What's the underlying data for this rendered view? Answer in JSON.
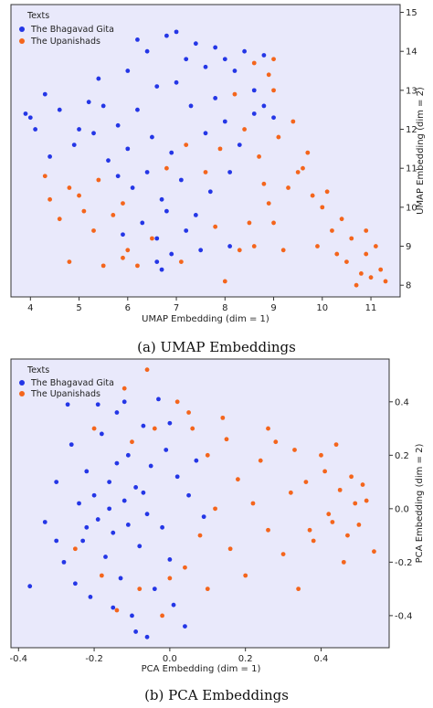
{
  "colors": {
    "series_a": "#2436e6",
    "series_b": "#f4651c",
    "plot_bg": "#e9e9fb"
  },
  "captions": {
    "a": "(a) UMAP Embeddings",
    "b": "(b) PCA Embeddings"
  },
  "chart_data": [
    {
      "type": "scatter",
      "xlabel": "UMAP Embedding (dim = 1)",
      "ylabel": "UMAP Embedding (dim = 2)",
      "xlim": [
        3.6,
        11.6
      ],
      "ylim": [
        7.7,
        15.2
      ],
      "x_ticks": [
        4,
        5,
        6,
        7,
        8,
        9,
        10,
        11
      ],
      "y_ticks": [
        8,
        9,
        10,
        11,
        12,
        13,
        14,
        15
      ],
      "y_axis_side": "right",
      "grid": false,
      "legend": {
        "title": "Texts",
        "position": "top-left"
      },
      "series": [
        {
          "name": "The Bhagavad Gita",
          "points": [
            [
              3.9,
              12.4
            ],
            [
              4.0,
              12.3
            ],
            [
              4.1,
              12.0
            ],
            [
              4.3,
              12.9
            ],
            [
              4.6,
              12.5
            ],
            [
              5.0,
              12.0
            ],
            [
              5.2,
              12.7
            ],
            [
              5.4,
              13.3
            ],
            [
              5.8,
              12.1
            ],
            [
              6.0,
              13.5
            ],
            [
              6.2,
              14.3
            ],
            [
              6.4,
              14.0
            ],
            [
              6.6,
              13.1
            ],
            [
              6.8,
              14.4
            ],
            [
              7.0,
              14.5
            ],
            [
              7.2,
              13.8
            ],
            [
              7.4,
              14.2
            ],
            [
              7.6,
              13.6
            ],
            [
              7.8,
              14.1
            ],
            [
              8.0,
              13.8
            ],
            [
              8.2,
              13.5
            ],
            [
              8.4,
              14.0
            ],
            [
              8.6,
              13.0
            ],
            [
              8.8,
              13.9
            ],
            [
              6.2,
              12.5
            ],
            [
              6.5,
              11.8
            ],
            [
              6.9,
              11.4
            ],
            [
              7.3,
              12.6
            ],
            [
              7.6,
              11.9
            ],
            [
              8.0,
              12.2
            ],
            [
              8.3,
              11.6
            ],
            [
              8.6,
              12.4
            ],
            [
              5.6,
              11.2
            ],
            [
              5.8,
              10.8
            ],
            [
              6.1,
              10.5
            ],
            [
              6.4,
              10.9
            ],
            [
              6.7,
              10.2
            ],
            [
              7.1,
              10.7
            ],
            [
              7.4,
              9.8
            ],
            [
              7.7,
              10.4
            ],
            [
              8.1,
              10.9
            ],
            [
              6.3,
              9.6
            ],
            [
              6.6,
              9.2
            ],
            [
              6.9,
              8.8
            ],
            [
              7.2,
              9.4
            ],
            [
              6.6,
              8.6
            ],
            [
              6.7,
              8.4
            ],
            [
              7.5,
              8.9
            ],
            [
              8.1,
              9.0
            ],
            [
              4.4,
              11.3
            ],
            [
              4.9,
              11.6
            ],
            [
              5.3,
              11.9
            ],
            [
              5.5,
              12.6
            ],
            [
              6.0,
              11.5
            ],
            [
              7.0,
              13.2
            ],
            [
              7.8,
              12.8
            ],
            [
              8.8,
              12.6
            ],
            [
              9.0,
              12.3
            ],
            [
              6.8,
              9.9
            ],
            [
              5.9,
              9.3
            ]
          ]
        },
        {
          "name": "The Upanishads",
          "points": [
            [
              4.3,
              10.8
            ],
            [
              4.4,
              10.2
            ],
            [
              4.6,
              9.7
            ],
            [
              4.8,
              10.5
            ],
            [
              5.0,
              10.3
            ],
            [
              5.1,
              9.9
            ],
            [
              5.3,
              9.4
            ],
            [
              5.4,
              10.7
            ],
            [
              5.7,
              9.8
            ],
            [
              5.9,
              10.1
            ],
            [
              4.8,
              8.6
            ],
            [
              5.9,
              8.7
            ],
            [
              6.2,
              8.5
            ],
            [
              6.5,
              9.2
            ],
            [
              7.1,
              8.6
            ],
            [
              8.0,
              8.1
            ],
            [
              8.3,
              8.9
            ],
            [
              8.5,
              9.6
            ],
            [
              8.9,
              10.1
            ],
            [
              9.0,
              9.6
            ],
            [
              9.3,
              10.5
            ],
            [
              9.5,
              10.9
            ],
            [
              9.7,
              11.4
            ],
            [
              9.1,
              11.8
            ],
            [
              8.7,
              11.3
            ],
            [
              8.9,
              13.4
            ],
            [
              9.0,
              13.0
            ],
            [
              8.2,
              12.9
            ],
            [
              8.4,
              12.0
            ],
            [
              7.9,
              11.5
            ],
            [
              8.8,
              10.6
            ],
            [
              9.2,
              8.9
            ],
            [
              9.8,
              10.3
            ],
            [
              10.0,
              10.0
            ],
            [
              10.2,
              9.4
            ],
            [
              10.3,
              8.8
            ],
            [
              10.5,
              8.6
            ],
            [
              10.6,
              9.2
            ],
            [
              10.8,
              8.3
            ],
            [
              10.9,
              8.8
            ],
            [
              11.0,
              8.2
            ],
            [
              11.1,
              9.0
            ],
            [
              11.2,
              8.4
            ],
            [
              11.3,
              8.1
            ],
            [
              10.7,
              8.0
            ],
            [
              10.4,
              9.7
            ],
            [
              10.1,
              10.4
            ],
            [
              8.6,
              13.7
            ],
            [
              9.0,
              13.8
            ],
            [
              7.6,
              10.9
            ],
            [
              7.2,
              11.6
            ],
            [
              6.8,
              11.0
            ],
            [
              8.6,
              9.0
            ],
            [
              7.8,
              9.5
            ],
            [
              9.6,
              11.0
            ],
            [
              9.9,
              9.0
            ],
            [
              10.9,
              9.4
            ],
            [
              9.4,
              12.2
            ],
            [
              6.0,
              8.9
            ],
            [
              5.5,
              8.5
            ]
          ]
        }
      ]
    },
    {
      "type": "scatter",
      "xlabel": "PCA Embedding (dim = 1)",
      "ylabel": "PCA Embedding (dim = 2)",
      "xlim": [
        -0.42,
        0.58
      ],
      "ylim": [
        -0.52,
        0.56
      ],
      "x_ticks": [
        "-0.4",
        "-0.2",
        "0.0",
        "0.2",
        "0.4"
      ],
      "y_ticks": [
        "-0.4",
        "-0.2",
        "0.0",
        "0.2",
        "0.4"
      ],
      "y_axis_side": "right",
      "grid": false,
      "legend": {
        "title": "Texts",
        "position": "top-left"
      },
      "series": [
        {
          "name": "The Bhagavad Gita",
          "points": [
            [
              -0.37,
              -0.29
            ],
            [
              -0.33,
              -0.05
            ],
            [
              -0.3,
              0.1
            ],
            [
              -0.28,
              -0.2
            ],
            [
              -0.26,
              0.24
            ],
            [
              -0.24,
              0.02
            ],
            [
              -0.23,
              -0.12
            ],
            [
              -0.22,
              0.14
            ],
            [
              -0.21,
              -0.33
            ],
            [
              -0.2,
              0.05
            ],
            [
              -0.19,
              -0.04
            ],
            [
              -0.18,
              0.28
            ],
            [
              -0.17,
              -0.18
            ],
            [
              -0.16,
              0.1
            ],
            [
              -0.15,
              -0.09
            ],
            [
              -0.14,
              0.36
            ],
            [
              -0.13,
              -0.26
            ],
            [
              -0.12,
              0.03
            ],
            [
              -0.11,
              0.2
            ],
            [
              -0.1,
              -0.4
            ],
            [
              -0.09,
              0.08
            ],
            [
              -0.08,
              -0.14
            ],
            [
              -0.07,
              0.31
            ],
            [
              -0.06,
              -0.02
            ],
            [
              -0.05,
              0.16
            ],
            [
              -0.04,
              -0.3
            ],
            [
              -0.03,
              0.41
            ],
            [
              -0.02,
              -0.07
            ],
            [
              -0.01,
              0.22
            ],
            [
              0.0,
              -0.19
            ],
            [
              0.02,
              0.12
            ],
            [
              0.04,
              -0.44
            ],
            [
              0.05,
              0.05
            ],
            [
              0.07,
              0.18
            ],
            [
              0.09,
              -0.03
            ],
            [
              -0.25,
              -0.28
            ],
            [
              -0.15,
              -0.37
            ],
            [
              -0.09,
              -0.46
            ],
            [
              -0.06,
              -0.48
            ],
            [
              0.01,
              -0.36
            ],
            [
              0.0,
              0.32
            ],
            [
              -0.12,
              0.4
            ],
            [
              -0.19,
              0.39
            ],
            [
              -0.27,
              0.39
            ],
            [
              -0.22,
              -0.07
            ],
            [
              -0.16,
              0.0
            ],
            [
              -0.11,
              -0.06
            ],
            [
              -0.07,
              0.06
            ],
            [
              -0.14,
              0.17
            ],
            [
              -0.3,
              -0.12
            ]
          ]
        },
        {
          "name": "The Upanishads",
          "points": [
            [
              -0.25,
              -0.15
            ],
            [
              -0.2,
              0.3
            ],
            [
              -0.18,
              -0.25
            ],
            [
              -0.12,
              0.45
            ],
            [
              -0.1,
              0.25
            ],
            [
              -0.06,
              0.52
            ],
            [
              -0.04,
              0.3
            ],
            [
              -0.02,
              -0.4
            ],
            [
              0.02,
              0.4
            ],
            [
              0.04,
              -0.22
            ],
            [
              0.06,
              0.3
            ],
            [
              0.08,
              -0.1
            ],
            [
              0.1,
              0.2
            ],
            [
              0.12,
              0.0
            ],
            [
              0.14,
              0.34
            ],
            [
              0.16,
              -0.15
            ],
            [
              0.18,
              0.11
            ],
            [
              0.2,
              -0.25
            ],
            [
              0.22,
              0.02
            ],
            [
              0.24,
              0.18
            ],
            [
              0.26,
              -0.08
            ],
            [
              0.28,
              0.25
            ],
            [
              0.3,
              -0.17
            ],
            [
              0.32,
              0.06
            ],
            [
              0.34,
              -0.3
            ],
            [
              0.36,
              0.1
            ],
            [
              0.38,
              -0.12
            ],
            [
              0.4,
              0.2
            ],
            [
              0.42,
              -0.02
            ],
            [
              0.44,
              0.24
            ],
            [
              0.46,
              -0.2
            ],
            [
              0.48,
              0.12
            ],
            [
              0.5,
              -0.06
            ],
            [
              0.52,
              0.03
            ],
            [
              0.54,
              -0.16
            ],
            [
              0.45,
              0.07
            ],
            [
              0.47,
              -0.1
            ],
            [
              0.49,
              0.02
            ],
            [
              0.43,
              -0.05
            ],
            [
              0.51,
              0.09
            ],
            [
              0.41,
              0.14
            ],
            [
              0.37,
              -0.08
            ],
            [
              0.05,
              0.36
            ],
            [
              0.15,
              0.26
            ],
            [
              -0.08,
              -0.3
            ],
            [
              -0.14,
              -0.38
            ],
            [
              0.0,
              -0.26
            ],
            [
              0.1,
              -0.3
            ],
            [
              0.26,
              0.3
            ],
            [
              0.33,
              0.22
            ]
          ]
        }
      ]
    }
  ]
}
